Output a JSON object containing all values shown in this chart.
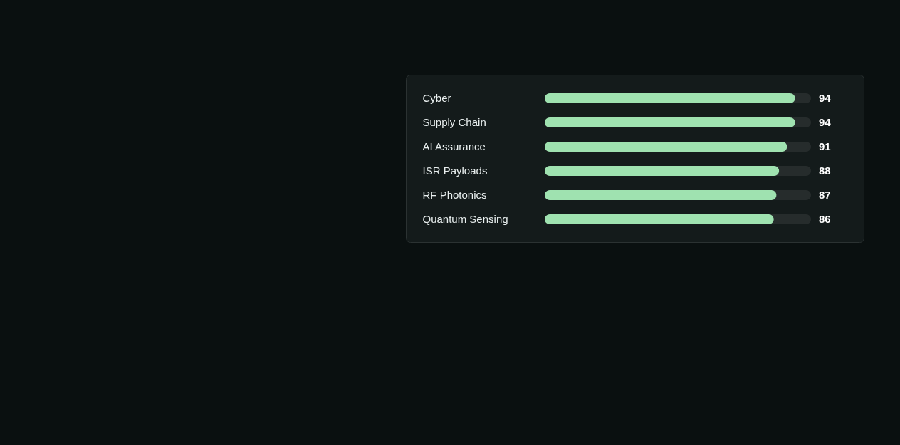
{
  "chart_data": {
    "type": "bar",
    "orientation": "horizontal",
    "categories": [
      "Cyber",
      "Supply Chain",
      "AI Assurance",
      "ISR Payloads",
      "RF Photonics",
      "Quantum Sensing"
    ],
    "values": [
      94,
      94,
      91,
      88,
      87,
      86
    ],
    "color": "#9fe2b0",
    "xlim": [
      0,
      100
    ],
    "data_labels": true,
    "tick_labels": "y",
    "grid": false
  }
}
